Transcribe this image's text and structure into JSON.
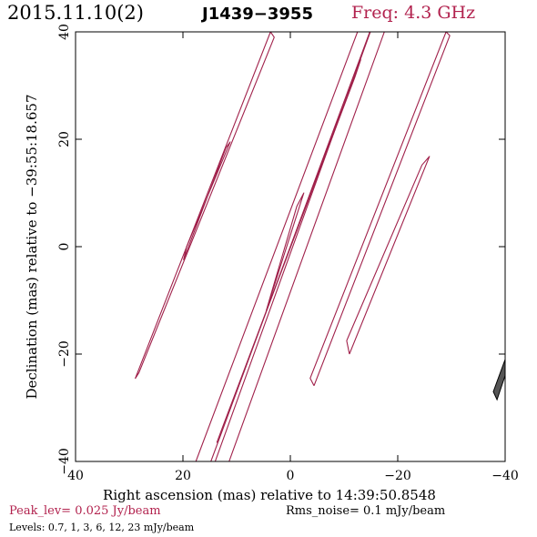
{
  "header": {
    "date": "2015.11.10(2)",
    "source": "J1439−3955",
    "frequency": "Freq: 4.3 GHz",
    "accent": "#b2224e"
  },
  "footer": {
    "peak": "Peak_lev=  0.025 Jy/beam",
    "rms": "Rms_noise=  0.1 mJy/beam",
    "levels": "Levels: 0.7,   1,   3,   6,  12,  23 mJy/beam"
  },
  "chart_data": {
    "type": "contour",
    "xlabel": "Right ascension (mas) relative to 14:39:50.8548",
    "ylabel": "Declination (mas) relative to −39:55:18.657",
    "xlim": [
      40,
      -40
    ],
    "ylim": [
      -40,
      40
    ],
    "xticks": [
      40,
      20,
      0,
      -20,
      -40
    ],
    "xtick_labels": [
      "40",
      "20",
      "0",
      "−20",
      "−40"
    ],
    "yticks": [
      -40,
      -20,
      0,
      20,
      40
    ],
    "ytick_labels": [
      "−40",
      "−20",
      "0",
      "20",
      "40"
    ],
    "contour_color": "#a0204a",
    "contours": [
      {
        "level": "outer",
        "points": [
          [
            28.9,
            -24.6
          ],
          [
            28.2,
            -23.5
          ],
          [
            3.0,
            39.0
          ],
          [
            3.7,
            40.0
          ],
          [
            28.9,
            -24.6
          ]
        ]
      },
      {
        "level": "inner",
        "points": [
          [
            19.9,
            -2.5
          ],
          [
            19.3,
            0.0
          ],
          [
            11.2,
            19.5
          ],
          [
            12.0,
            18.4
          ],
          [
            19.9,
            -2.5
          ]
        ]
      },
      {
        "level": "jet-1",
        "points": [
          [
            17.6,
            -40.0
          ],
          [
            14.8,
            -40.0
          ],
          [
            -14.8,
            40.0
          ],
          [
            -12.5,
            40.0
          ],
          [
            17.6,
            -40.0
          ]
        ]
      },
      {
        "level": "jet-2",
        "points": [
          [
            14.0,
            -40.0
          ],
          [
            11.4,
            -40.0
          ],
          [
            -17.5,
            40.0
          ],
          [
            -14.9,
            40.0
          ],
          [
            14.0,
            -40.0
          ]
        ]
      },
      {
        "level": "jet-3",
        "points": [
          [
            13.7,
            -36.5
          ],
          [
            -13.1,
            34.8
          ],
          [
            -12.0,
            31.5
          ],
          [
            12.7,
            -33.8
          ],
          [
            13.7,
            -36.5
          ]
        ]
      },
      {
        "level": "jet-4",
        "points": [
          [
            4.5,
            -12.0
          ],
          [
            -2.5,
            10.0
          ],
          [
            -1.2,
            7.5
          ],
          [
            3.5,
            -8.5
          ],
          [
            4.5,
            -12.0
          ]
        ]
      },
      {
        "level": "east-outer",
        "points": [
          [
            -4.4,
            -25.9
          ],
          [
            -29.7,
            39.3
          ],
          [
            -29.0,
            40.0
          ],
          [
            -3.7,
            -24.5
          ],
          [
            -4.4,
            -25.9
          ]
        ]
      },
      {
        "level": "east-inner",
        "points": [
          [
            -11.0,
            -20.0
          ],
          [
            -25.9,
            16.8
          ],
          [
            -24.5,
            15.2
          ],
          [
            -10.5,
            -17.5
          ],
          [
            -11.0,
            -20.0
          ]
        ]
      }
    ],
    "feature": {
      "shape": "filled",
      "points": [
        [
          -38.5,
          -28.5
        ],
        [
          -40.0,
          -24.0
        ],
        [
          -40.0,
          -21.0
        ],
        [
          -37.8,
          -27.0
        ],
        [
          -38.5,
          -28.5
        ]
      ]
    },
    "grid": false,
    "legend": "none"
  }
}
